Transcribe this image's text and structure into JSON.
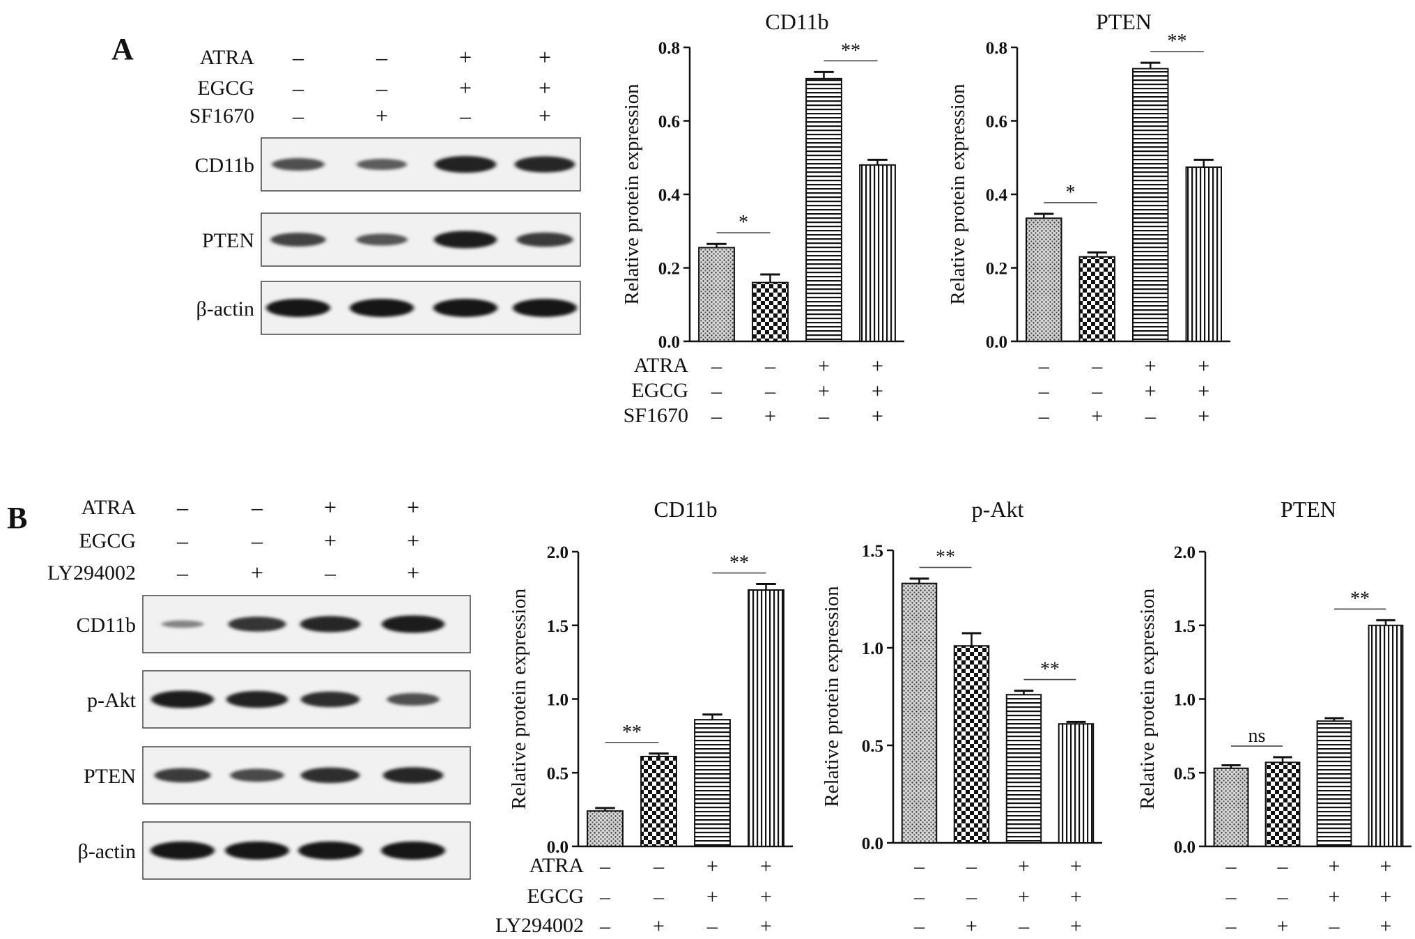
{
  "panels": {
    "A": {
      "letter": "A"
    },
    "B": {
      "letter": "B"
    }
  },
  "western_blots": [
    {
      "panel": "A",
      "treatments": [
        {
          "label": "ATRA",
          "signs": [
            "–",
            "–",
            "+",
            "+"
          ]
        },
        {
          "label": "EGCG",
          "signs": [
            "–",
            "–",
            "+",
            "+"
          ]
        },
        {
          "label": "SF1670",
          "signs": [
            "–",
            "+",
            "–",
            "+"
          ]
        }
      ],
      "rows": [
        {
          "label": "CD11b",
          "band_intensity": [
            0.55,
            0.45,
            0.9,
            0.85
          ]
        },
        {
          "label": "PTEN",
          "band_intensity": [
            0.65,
            0.5,
            0.95,
            0.7
          ]
        },
        {
          "label": "β-actin",
          "band_intensity": [
            1.0,
            1.0,
            1.0,
            1.0
          ]
        }
      ]
    },
    {
      "panel": "B",
      "treatments": [
        {
          "label": "ATRA",
          "signs": [
            "–",
            "–",
            "+",
            "+"
          ]
        },
        {
          "label": "EGCG",
          "signs": [
            "–",
            "–",
            "+",
            "+"
          ]
        },
        {
          "label": "LY294002",
          "signs": [
            "–",
            "+",
            "–",
            "+"
          ]
        }
      ],
      "rows": [
        {
          "label": "CD11b",
          "band_intensity": [
            0.15,
            0.75,
            0.85,
            0.95
          ]
        },
        {
          "label": "p-Akt",
          "band_intensity": [
            0.95,
            0.9,
            0.8,
            0.55
          ]
        },
        {
          "label": "PTEN",
          "band_intensity": [
            0.7,
            0.6,
            0.8,
            0.85
          ]
        },
        {
          "label": "β-actin",
          "band_intensity": [
            1.0,
            1.0,
            1.0,
            1.0
          ]
        }
      ]
    }
  ],
  "chart_data": [
    {
      "panel": "A",
      "type": "bar",
      "title": "CD11b",
      "ylabel": "Relative protein expression",
      "ylim": [
        0,
        0.8
      ],
      "yticks": [
        "0.0",
        "0.2",
        "0.4",
        "0.6",
        "0.8"
      ],
      "values": [
        0.255,
        0.16,
        0.715,
        0.48
      ],
      "errors": [
        0.01,
        0.022,
        0.018,
        0.014
      ],
      "patterns": [
        "dots",
        "checker",
        "hlines",
        "vlines"
      ],
      "significance": [
        {
          "from": 0,
          "to": 1,
          "label": "*"
        },
        {
          "from": 2,
          "to": 3,
          "label": "**"
        }
      ],
      "treatments": [
        {
          "label": "ATRA",
          "signs": [
            "–",
            "–",
            "+",
            "+"
          ]
        },
        {
          "label": "EGCG",
          "signs": [
            "–",
            "–",
            "+",
            "+"
          ]
        },
        {
          "label": "SF1670",
          "signs": [
            "–",
            "+",
            "–",
            "+"
          ]
        }
      ]
    },
    {
      "panel": "A",
      "type": "bar",
      "title": "PTEN",
      "ylabel": "Relative protein expression",
      "ylim": [
        0,
        0.8
      ],
      "yticks": [
        "0.0",
        "0.2",
        "0.4",
        "0.6",
        "0.8"
      ],
      "values": [
        0.335,
        0.23,
        0.742,
        0.474
      ],
      "errors": [
        0.012,
        0.012,
        0.016,
        0.02
      ],
      "patterns": [
        "dots",
        "checker",
        "hlines",
        "vlines"
      ],
      "significance": [
        {
          "from": 0,
          "to": 1,
          "label": "*"
        },
        {
          "from": 2,
          "to": 3,
          "label": "**"
        }
      ],
      "treatments": [
        {
          "label": "",
          "signs": [
            "–",
            "–",
            "+",
            "+"
          ]
        },
        {
          "label": "",
          "signs": [
            "–",
            "–",
            "+",
            "+"
          ]
        },
        {
          "label": "",
          "signs": [
            "–",
            "+",
            "–",
            "+"
          ]
        }
      ]
    },
    {
      "panel": "B",
      "type": "bar",
      "title": "CD11b",
      "ylabel": "Relative protein expression",
      "ylim": [
        0,
        2.0
      ],
      "yticks": [
        "0.0",
        "0.5",
        "1.0",
        "1.5",
        "2.0"
      ],
      "values": [
        0.24,
        0.61,
        0.86,
        1.74
      ],
      "errors": [
        0.02,
        0.02,
        0.035,
        0.04
      ],
      "patterns": [
        "dots",
        "checker",
        "hlines",
        "vlines"
      ],
      "significance": [
        {
          "from": 0,
          "to": 1,
          "label": "**"
        },
        {
          "from": 2,
          "to": 3,
          "label": "**"
        }
      ],
      "treatments": [
        {
          "label": "ATRA",
          "signs": [
            "–",
            "–",
            "+",
            "+"
          ]
        },
        {
          "label": "EGCG",
          "signs": [
            "–",
            "–",
            "+",
            "+"
          ]
        },
        {
          "label": "LY294002",
          "signs": [
            "–",
            "+",
            "–",
            "+"
          ]
        }
      ]
    },
    {
      "panel": "B",
      "type": "bar",
      "title": "p-Akt",
      "ylabel": "Relative protein expression",
      "ylim": [
        0,
        1.5
      ],
      "yticks": [
        "0.0",
        "0.5",
        "1.0",
        "1.5"
      ],
      "values": [
        1.33,
        1.01,
        0.76,
        0.61
      ],
      "errors": [
        0.025,
        0.065,
        0.02,
        0.01
      ],
      "patterns": [
        "dots",
        "checker",
        "hlines",
        "vlines"
      ],
      "significance": [
        {
          "from": 0,
          "to": 1,
          "label": "**"
        },
        {
          "from": 2,
          "to": 3,
          "label": "**"
        }
      ],
      "treatments": [
        {
          "label": "",
          "signs": [
            "–",
            "–",
            "+",
            "+"
          ]
        },
        {
          "label": "",
          "signs": [
            "–",
            "–",
            "+",
            "+"
          ]
        },
        {
          "label": "",
          "signs": [
            "–",
            "+",
            "–",
            "+"
          ]
        }
      ]
    },
    {
      "panel": "B",
      "type": "bar",
      "title": "PTEN",
      "ylabel": "Relative protein expression",
      "ylim": [
        0,
        2.0
      ],
      "yticks": [
        "0.0",
        "0.5",
        "1.0",
        "1.5",
        "2.0"
      ],
      "values": [
        0.53,
        0.57,
        0.85,
        1.5
      ],
      "errors": [
        0.02,
        0.035,
        0.02,
        0.035
      ],
      "patterns": [
        "dots",
        "checker",
        "hlines",
        "vlines"
      ],
      "significance": [
        {
          "from": 0,
          "to": 1,
          "label": "ns"
        },
        {
          "from": 2,
          "to": 3,
          "label": "**"
        }
      ],
      "treatments": [
        {
          "label": "",
          "signs": [
            "–",
            "–",
            "+",
            "+"
          ]
        },
        {
          "label": "",
          "signs": [
            "–",
            "–",
            "+",
            "+"
          ]
        },
        {
          "label": "",
          "signs": [
            "–",
            "+",
            "–",
            "+"
          ]
        }
      ]
    }
  ]
}
